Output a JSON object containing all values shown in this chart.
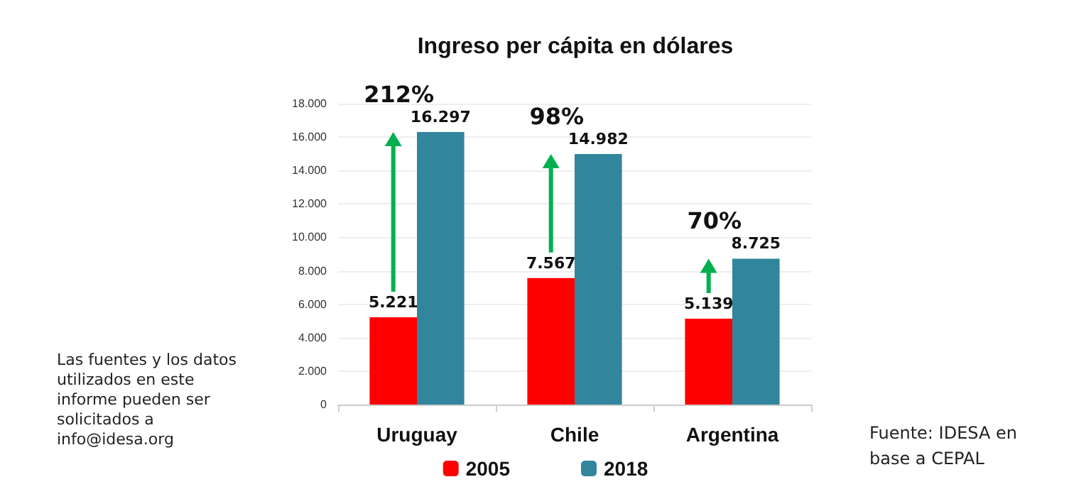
{
  "chart_data": {
    "type": "bar",
    "title": "Ingreso per cápita en dólares",
    "categories": [
      "Uruguay",
      "Chile",
      "Argentina"
    ],
    "series": [
      {
        "name": "2005",
        "color": "#ff0000",
        "values": [
          5221,
          7567,
          5139
        ],
        "value_labels": [
          "5.221",
          "7.567",
          "5.139"
        ]
      },
      {
        "name": "2018",
        "color": "#31859c",
        "values": [
          16297,
          14982,
          8725
        ],
        "value_labels": [
          "16.297",
          "14.982",
          "8.725"
        ]
      }
    ],
    "ylim": [
      0,
      18000
    ],
    "yticks": [
      {
        "value": 0,
        "label": "0"
      },
      {
        "value": 2000,
        "label": "2.000"
      },
      {
        "value": 4000,
        "label": "4.000"
      },
      {
        "value": 6000,
        "label": "6.000"
      },
      {
        "value": 8000,
        "label": "8.000"
      },
      {
        "value": 10000,
        "label": "10.000"
      },
      {
        "value": 12000,
        "label": "12.000"
      },
      {
        "value": 14000,
        "label": "14.000"
      },
      {
        "value": 16000,
        "label": "16.000"
      },
      {
        "value": 18000,
        "label": "18.000"
      }
    ],
    "grid": "y",
    "legend": "bottom",
    "annotations": [
      {
        "text": "212%",
        "x": "Uruguay",
        "y": 16297
      },
      {
        "text": "98%",
        "x": "Chile",
        "y": 14982
      },
      {
        "text": "70%",
        "x": "Argentina",
        "y": 8725
      },
      "Las fuentes y los datos utilizados en este informe pueden ser solicitados a info@idesa.org",
      "Fuente: IDESA en base a CEPAL"
    ]
  }
}
